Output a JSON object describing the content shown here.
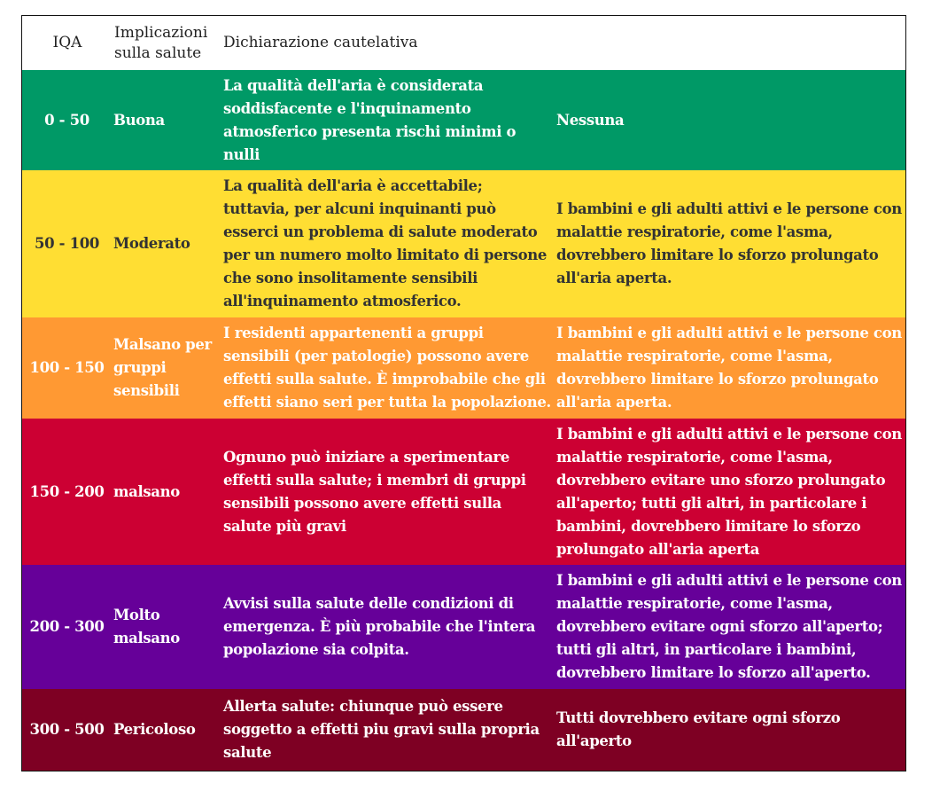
{
  "header": {
    "iqa": "IQA",
    "implicazioni": "Implicazioni sulla salute",
    "dichiarazione": "Dichiarazione cautelativa",
    "precauzioni": ""
  },
  "colors": {
    "buona": "#009966",
    "moderato": "#FFDE33",
    "malsano_sensibili": "#FF9933",
    "malsano": "#CC0033",
    "molto_malsano": "#660099",
    "pericoloso": "#7E0023"
  },
  "rows": [
    {
      "iqa": "0 - 50",
      "level": "Buona",
      "warning": "La qualità dell'aria è considerata soddisfacente e l'inquinamento atmosferico presenta rischi minimi o nulli",
      "caution": "Nessuna",
      "color": "#009966",
      "text_color": "#ffffff"
    },
    {
      "iqa": "50 - 100",
      "level": "Moderato",
      "warning": "La qualità dell'aria è accettabile; tuttavia, per alcuni inquinanti può esserci un problema di salute moderato per un numero molto limitato di persone che sono insolitamente sensibili all'inquinamento atmosferico.",
      "caution": "I bambini e gli adulti attivi e le persone con malattie respiratorie, come l'asma, dovrebbero limitare lo sforzo prolungato all'aria aperta.",
      "color": "#FFDE33",
      "text_color": "#333333"
    },
    {
      "iqa": "100 - 150",
      "level": "Malsano per gruppi sensibili",
      "warning": "I residenti appartenenti a gruppi sensibili (per patologie) possono avere effetti sulla salute. È improbabile che gli effetti siano seri per tutta la popolazione.",
      "caution": "I bambini e gli adulti attivi e le persone con malattie respiratorie, come l'asma, dovrebbero limitare lo sforzo prolungato all'aria aperta.",
      "color": "#FF9933",
      "text_color": "#ffffff"
    },
    {
      "iqa": "150 - 200",
      "level": "malsano",
      "warning": "Ognuno può iniziare a sperimentare effetti sulla salute; i membri di gruppi sensibili possono avere effetti sulla salute più gravi",
      "caution": "I bambini e gli adulti attivi e le persone con malattie respiratorie, come l'asma, dovrebbero evitare uno sforzo prolungato all'aperto; tutti gli altri, in particolare i bambini, dovrebbero limitare lo sforzo prolungato all'aria aperta",
      "color": "#CC0033",
      "text_color": "#ffffff"
    },
    {
      "iqa": "200 - 300",
      "level": "Molto malsano",
      "warning": "Avvisi sulla salute delle condizioni di emergenza. È più probabile che l'intera popolazione sia colpita.",
      "caution": "I bambini e gli adulti attivi e le persone con malattie respiratorie, come l'asma, dovrebbero evitare ogni sforzo all'aperto; tutti gli altri, in particolare i bambini, dovrebbero limitare lo sforzo all'aperto.",
      "color": "#660099",
      "text_color": "#ffffff"
    },
    {
      "iqa": "300 - 500",
      "level": "Pericoloso",
      "warning": "Allerta salute: chiunque può essere soggetto a effetti piu gravi sulla propria salute",
      "caution": "Tutti dovrebbero evitare ogni sforzo all'aperto",
      "color": "#7E0023",
      "text_color": "#ffffff"
    }
  ]
}
